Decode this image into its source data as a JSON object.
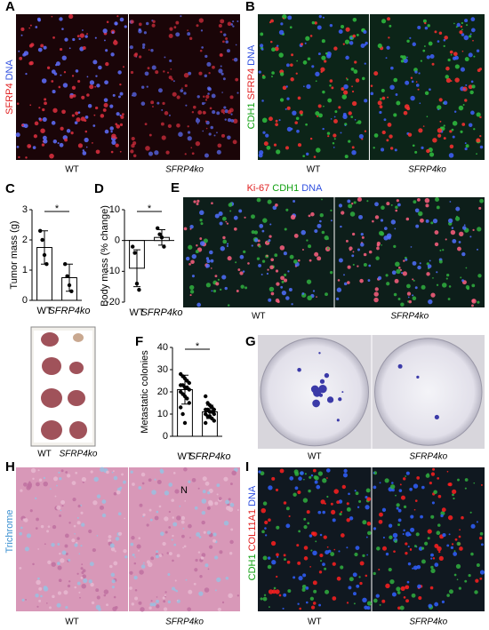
{
  "panels": [
    {
      "label": "A",
      "stain": [
        "SFRP4",
        "DNA"
      ],
      "captions": [
        "WT",
        "SFRP4ko"
      ]
    },
    {
      "label": "B",
      "stain": [
        "CDH1",
        "SFRP4",
        "DNA"
      ],
      "captions": [
        "WT",
        "SFRP4ko"
      ]
    },
    {
      "label": "E",
      "stain": [
        "Ki-67",
        "CDH1",
        "DNA"
      ],
      "captions": [
        "WT",
        "SFRP4ko"
      ]
    },
    {
      "label": "G",
      "stain": [],
      "captions": [
        "WT",
        "SFRP4ko"
      ]
    },
    {
      "label": "H",
      "stain": [
        "Trichrome"
      ],
      "captions": [
        "WT",
        "SFRP4ko"
      ],
      "marker": "N"
    },
    {
      "label": "I",
      "stain": [
        "CDH1",
        "COL11A1",
        "DNA"
      ],
      "captions": [
        "WT",
        "SFRP4ko"
      ]
    }
  ],
  "photo_captions": [
    "WT",
    "SFRP4ko"
  ],
  "chart_data": [
    {
      "type": "bar",
      "panel": "C",
      "ylabel": "Tumor mass (g)",
      "categories": [
        "WT",
        "SFRP4ko"
      ],
      "values": [
        1.75,
        0.75
      ],
      "errors": [
        0.55,
        0.45
      ],
      "points": [
        [
          2.3,
          2.0,
          1.5,
          1.2
        ],
        [
          1.2,
          0.8,
          0.5,
          0.3
        ]
      ],
      "ylim": [
        0,
        3
      ],
      "yticks": [
        0,
        1,
        2,
        3
      ],
      "annotation": "*",
      "color": "#ffffff"
    },
    {
      "type": "bar",
      "panel": "D",
      "ylabel": "Body mass (% change)",
      "categories": [
        "WT",
        "SFRP4ko"
      ],
      "values": [
        -9,
        1
      ],
      "errors": [
        6,
        2.5
      ],
      "points": [
        [
          -2,
          -4,
          -14,
          -16
        ],
        [
          4,
          2,
          1,
          -2
        ]
      ],
      "ylim": [
        -20,
        10
      ],
      "yticks": [
        -20,
        -10,
        0,
        10
      ],
      "annotation": "*",
      "color": "#ffffff"
    },
    {
      "type": "bar",
      "panel": "F",
      "ylabel": "Metastatic colonies",
      "categories": [
        "WT",
        "SFRP4ko"
      ],
      "values": [
        21,
        11
      ],
      "errors": [
        6.5,
        3
      ],
      "points": [
        [
          28,
          27,
          26,
          25,
          24,
          23,
          23,
          22,
          22,
          21,
          20,
          19,
          18,
          17,
          15,
          13,
          10,
          6
        ],
        [
          18,
          15,
          14,
          13,
          12,
          12,
          12,
          11,
          11,
          10,
          10,
          9,
          9,
          8,
          7,
          6
        ]
      ],
      "ylim": [
        0,
        40
      ],
      "yticks": [
        0,
        10,
        20,
        30,
        40
      ],
      "annotation": "*",
      "color": "#ffffff"
    }
  ]
}
